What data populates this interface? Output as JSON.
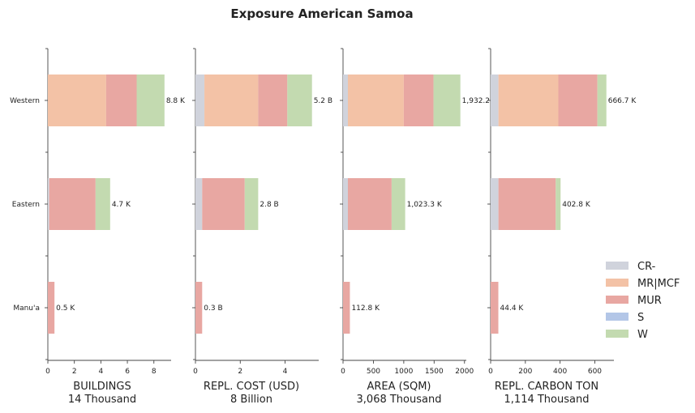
{
  "chart_data": {
    "type": "bar",
    "orientation": "horizontal",
    "stacked": true,
    "title": "Exposure American Samoa",
    "categories": [
      "Western",
      "Eastern",
      "Manu'a"
    ],
    "legend": {
      "placement": "right",
      "entries": [
        {
          "key": "CR",
          "label": "CR-",
          "color": "#d0d3dc"
        },
        {
          "key": "MR",
          "label": "MR|MCF",
          "color": "#f3c2a6"
        },
        {
          "key": "MUR",
          "label": "MUR",
          "color": "#e8a7a2"
        },
        {
          "key": "S",
          "label": "S",
          "color": "#b3c6e7"
        },
        {
          "key": "W",
          "label": "W",
          "color": "#c3dab0"
        }
      ]
    },
    "panels": [
      {
        "xlabel": "BUILDINGS",
        "subtitle": "14 Thousand",
        "xlim": [
          0,
          9.3
        ],
        "ticks": [
          0,
          2,
          4,
          6,
          8
        ],
        "tick_labels": [
          "0",
          "2",
          "4",
          "6",
          "8"
        ],
        "series": {
          "CR": [
            0,
            0.1,
            0
          ],
          "MR": [
            4.4,
            0,
            0
          ],
          "MUR": [
            2.3,
            3.5,
            0.5
          ],
          "S": [
            0,
            0,
            0
          ],
          "W": [
            2.1,
            1.1,
            0
          ]
        },
        "total_labels": [
          "8.8 K",
          "4.7 K",
          "0.5 K"
        ]
      },
      {
        "xlabel": "REPL. COST (USD)",
        "subtitle": "8 Billion",
        "xlim": [
          0,
          5.5
        ],
        "ticks": [
          0,
          2,
          4
        ],
        "tick_labels": [
          "0",
          "2",
          "4"
        ],
        "series": {
          "CR": [
            0.4,
            0.3,
            0
          ],
          "MR": [
            2.4,
            0,
            0
          ],
          "MUR": [
            1.3,
            1.9,
            0.3
          ],
          "S": [
            0,
            0,
            0
          ],
          "W": [
            1.1,
            0.6,
            0
          ]
        },
        "total_labels": [
          "5.2 B",
          "2.8 B",
          "0.3 B"
        ]
      },
      {
        "xlabel": "AREA (SQM)",
        "subtitle": "3,068 Thousand",
        "xlim": [
          0,
          2030
        ],
        "ticks": [
          0,
          500,
          1000,
          1500,
          2000
        ],
        "tick_labels": [
          "0",
          "500",
          "1000",
          "1500",
          "2000"
        ],
        "series": {
          "CR": [
            80,
            80,
            0
          ],
          "MR": [
            920,
            0,
            0
          ],
          "MUR": [
            490,
            720,
            112.8
          ],
          "S": [
            0,
            0,
            0
          ],
          "W": [
            442.2,
            223.3,
            0
          ]
        },
        "total_labels": [
          "1,932.2",
          "1,023.3 K",
          "112.8 K"
        ]
      },
      {
        "xlabel": "REPL. CARBON TON",
        "subtitle": "1,114 Thousand",
        "xlim": [
          0,
          710
        ],
        "ticks": [
          0,
          200,
          400,
          600
        ],
        "tick_labels": [
          "0",
          "200",
          "400",
          "600"
        ],
        "series": {
          "CR": [
            45,
            45,
            0
          ],
          "MR": [
            345,
            0,
            0
          ],
          "MUR": [
            225,
            330,
            44.4
          ],
          "S": [
            0,
            0,
            0
          ],
          "W": [
            51.7,
            27.8,
            0
          ]
        },
        "total_labels": [
          "666.7 K",
          "402.8 K",
          "44.4 K"
        ]
      }
    ]
  }
}
